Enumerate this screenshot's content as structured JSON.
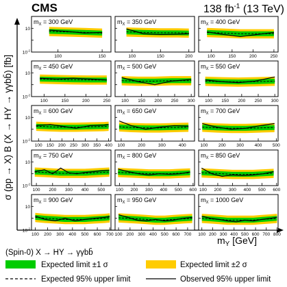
{
  "header": {
    "experiment": "CMS",
    "lumi_main": "138 fb",
    "lumi_exp": "-1",
    "lumi_tail": " (13 TeV)"
  },
  "axes": {
    "ylabel": "σ (pp → X) B (X → HY → γγbb̄) [fb]",
    "xlabel": "m",
    "xlabel_sub": "Y",
    "xlabel_unit": " [GeV]"
  },
  "legend": {
    "title": "(Spin-0) X → HY → γγbb̄",
    "entries": [
      {
        "label": "Expected limit ±1 σ",
        "kind": "box",
        "color": "#00cc00"
      },
      {
        "label": "Expected limit ±2 σ",
        "kind": "box",
        "color": "#ffcc00"
      },
      {
        "label": "Expected 95% upper limit",
        "kind": "dashed",
        "color": "#000000"
      },
      {
        "label": "Observed 95% upper limit",
        "kind": "solid",
        "color": "#000000"
      }
    ]
  },
  "colors": {
    "band1": "#00cc00",
    "band2": "#ffcc00",
    "line": "#000000"
  },
  "chart_data": {
    "type": "line",
    "yscale": "log",
    "ylim": [
      0.01,
      10
    ],
    "ytick_labels": [
      "1",
      "10",
      "10",
      "10"
    ],
    "ytick_exps": [
      "",
      "",
      "-1",
      "-2"
    ],
    "panels": [
      {
        "mx_label": "m",
        "mx_sub": "X",
        "mx_text": " = 300 GeV",
        "xlim": [
          70,
          160
        ],
        "xticks": [
          100,
          150
        ],
        "x": [
          90,
          110,
          130,
          150
        ],
        "exp": [
          0.55,
          0.5,
          0.45,
          0.4
        ],
        "obs": [
          0.7,
          0.55,
          0.4,
          0.45
        ]
      },
      {
        "mx_label": "m",
        "mx_sub": "X",
        "mx_text": " = 350 GeV",
        "xlim": [
          70,
          210
        ],
        "xticks": [
          100,
          150,
          200
        ],
        "x": [
          90,
          120,
          150,
          180,
          200
        ],
        "exp": [
          0.5,
          0.45,
          0.42,
          0.42,
          0.4
        ],
        "obs": [
          0.9,
          0.35,
          0.3,
          0.32,
          0.35
        ]
      },
      {
        "mx_label": "m",
        "mx_sub": "X",
        "mx_text": " = 400 GeV",
        "xlim": [
          70,
          260
        ],
        "xticks": [
          100,
          150,
          200,
          250
        ],
        "x": [
          90,
          130,
          170,
          210,
          250
        ],
        "exp": [
          0.45,
          0.4,
          0.35,
          0.35,
          0.35
        ],
        "obs": [
          0.5,
          0.3,
          0.2,
          0.3,
          0.45
        ]
      },
      {
        "mx_label": "m",
        "mx_sub": "X",
        "mx_text": " = 450 GeV",
        "xlim": [
          70,
          260
        ],
        "xticks": [
          100,
          150,
          200,
          250
        ],
        "x": [
          90,
          130,
          170,
          210,
          250
        ],
        "exp": [
          0.3,
          0.28,
          0.26,
          0.25,
          0.25
        ],
        "obs": [
          0.35,
          0.3,
          0.35,
          0.3,
          0.25
        ]
      },
      {
        "mx_label": "m",
        "mx_sub": "X",
        "mx_text": " = 500 GeV",
        "xlim": [
          70,
          310
        ],
        "xticks": [
          100,
          150,
          200,
          250,
          300
        ],
        "x": [
          90,
          140,
          190,
          240,
          300
        ],
        "exp": [
          0.22,
          0.2,
          0.2,
          0.22,
          0.22
        ],
        "obs": [
          0.4,
          0.18,
          0.1,
          0.2,
          0.28
        ]
      },
      {
        "mx_label": "m",
        "mx_sub": "X",
        "mx_text": " = 550 GeV",
        "xlim": [
          70,
          310
        ],
        "xticks": [
          100,
          150,
          200,
          250,
          300
        ],
        "x": [
          90,
          140,
          190,
          240,
          300
        ],
        "exp": [
          0.2,
          0.18,
          0.17,
          0.18,
          0.2
        ],
        "obs": [
          0.25,
          0.18,
          0.15,
          0.2,
          0.45
        ]
      },
      {
        "mx_label": "m",
        "mx_sub": "X",
        "mx_text": " = 600 GeV",
        "xlim": [
          70,
          410
        ],
        "xticks": [
          100,
          150,
          200,
          250,
          300,
          350,
          400
        ],
        "x": [
          90,
          150,
          200,
          260,
          320,
          380,
          400
        ],
        "exp": [
          0.18,
          0.16,
          0.15,
          0.15,
          0.16,
          0.17,
          0.18
        ],
        "obs": [
          0.2,
          0.25,
          0.18,
          0.12,
          0.2,
          0.22,
          0.25
        ]
      },
      {
        "mx_label": "m",
        "mx_sub": "X",
        "mx_text": " = 650 GeV",
        "xlim": [
          70,
          460
        ],
        "xticks": [
          100,
          200,
          300,
          400
        ],
        "x": [
          90,
          150,
          220,
          290,
          360,
          430
        ],
        "exp": [
          0.16,
          0.14,
          0.13,
          0.13,
          0.14,
          0.15
        ],
        "obs": [
          0.5,
          0.2,
          0.1,
          0.15,
          0.2,
          0.18
        ]
      },
      {
        "mx_label": "m",
        "mx_sub": "X",
        "mx_text": " = 700 GeV",
        "xlim": [
          70,
          510
        ],
        "xticks": [
          100,
          200,
          300,
          400,
          500
        ],
        "x": [
          90,
          170,
          250,
          330,
          410,
          490
        ],
        "exp": [
          0.15,
          0.13,
          0.12,
          0.12,
          0.13,
          0.14
        ],
        "obs": [
          0.3,
          0.15,
          0.1,
          0.12,
          0.2,
          0.3
        ]
      },
      {
        "mx_label": "m",
        "mx_sub": "X",
        "mx_text": " = 750 GeV",
        "xlim": [
          70,
          560
        ],
        "xticks": [
          100,
          200,
          300,
          400,
          500
        ],
        "x": [
          90,
          150,
          200,
          250,
          300,
          350,
          400,
          450,
          500,
          550
        ],
        "exp": [
          0.14,
          0.13,
          0.12,
          0.11,
          0.11,
          0.11,
          0.11,
          0.12,
          0.13,
          0.14
        ],
        "obs": [
          0.15,
          0.22,
          0.1,
          0.3,
          0.12,
          0.1,
          0.13,
          0.15,
          0.18,
          0.2
        ]
      },
      {
        "mx_label": "m",
        "mx_sub": "X",
        "mx_text": " = 800 GeV",
        "xlim": [
          70,
          610
        ],
        "xticks": [
          100,
          200,
          300,
          400,
          500,
          600
        ],
        "x": [
          90,
          160,
          230,
          300,
          370,
          440,
          510,
          580
        ],
        "exp": [
          0.13,
          0.12,
          0.11,
          0.1,
          0.1,
          0.1,
          0.11,
          0.12
        ],
        "obs": [
          0.25,
          0.15,
          0.1,
          0.08,
          0.1,
          0.09,
          0.1,
          0.14
        ]
      },
      {
        "mx_label": "m",
        "mx_sub": "X",
        "mx_text": " = 850 GeV",
        "xlim": [
          70,
          610
        ],
        "xticks": [
          100,
          200,
          300,
          400,
          500,
          600
        ],
        "x": [
          90,
          160,
          230,
          300,
          370,
          440,
          510,
          580
        ],
        "exp": [
          0.12,
          0.11,
          0.1,
          0.09,
          0.09,
          0.09,
          0.1,
          0.11
        ],
        "obs": [
          0.3,
          0.1,
          0.06,
          0.08,
          0.07,
          0.08,
          0.1,
          0.15
        ]
      },
      {
        "mx_label": "m",
        "mx_sub": "X",
        "mx_text": " = 900 GeV",
        "xlim": [
          70,
          710
        ],
        "xticks": [
          100,
          200,
          300,
          400,
          500,
          600,
          700
        ],
        "x": [
          100,
          180,
          260,
          340,
          420,
          500,
          580,
          660,
          700
        ],
        "exp": [
          0.12,
          0.1,
          0.09,
          0.08,
          0.08,
          0.08,
          0.09,
          0.1,
          0.11
        ],
        "obs": [
          0.15,
          0.08,
          0.06,
          0.1,
          0.06,
          0.08,
          0.1,
          0.12,
          0.14
        ]
      },
      {
        "mx_label": "m",
        "mx_sub": "X",
        "mx_text": " = 950 GeV",
        "xlim": [
          70,
          760
        ],
        "xticks": [
          100,
          200,
          300,
          400,
          500,
          600,
          700
        ],
        "x": [
          100,
          180,
          260,
          340,
          420,
          500,
          580,
          660,
          740
        ],
        "exp": [
          0.11,
          0.1,
          0.09,
          0.08,
          0.07,
          0.07,
          0.08,
          0.09,
          0.1
        ],
        "obs": [
          0.2,
          0.12,
          0.07,
          0.06,
          0.08,
          0.06,
          0.07,
          0.1,
          0.12
        ]
      },
      {
        "mx_label": "m",
        "mx_sub": "X",
        "mx_text": " = 1000 GeV",
        "xlim": [
          70,
          810
        ],
        "xticks": [
          100,
          200,
          300,
          400,
          500,
          600,
          700,
          800
        ],
        "x": [
          100,
          180,
          260,
          340,
          420,
          500,
          580,
          660,
          740,
          800
        ],
        "exp": [
          0.1,
          0.09,
          0.08,
          0.07,
          0.07,
          0.07,
          0.07,
          0.08,
          0.09,
          0.1
        ],
        "obs": [
          0.15,
          0.1,
          0.08,
          0.06,
          0.05,
          0.07,
          0.06,
          0.08,
          0.1,
          0.12
        ]
      }
    ]
  }
}
